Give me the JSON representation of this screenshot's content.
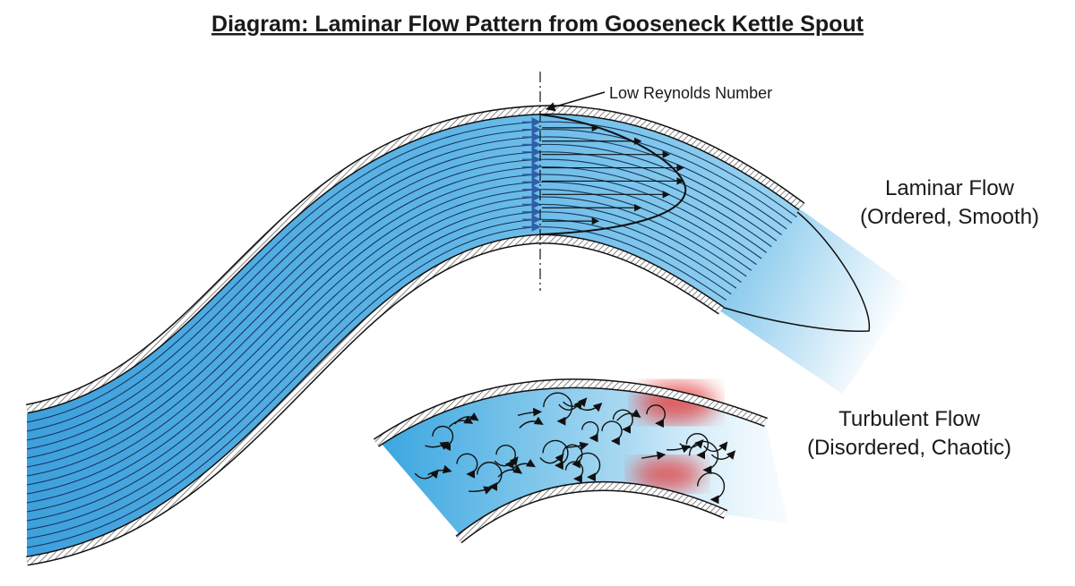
{
  "title": "Diagram: Laminar Flow Pattern from Gooseneck Kettle Spout",
  "annotation": "Low Reynolds Number",
  "laminar": {
    "label": "Laminar Flow",
    "description": "(Ordered, Smooth)"
  },
  "turbulent": {
    "label": "Turbulent Flow",
    "description": "(Disordered, Chaotic)"
  }
}
